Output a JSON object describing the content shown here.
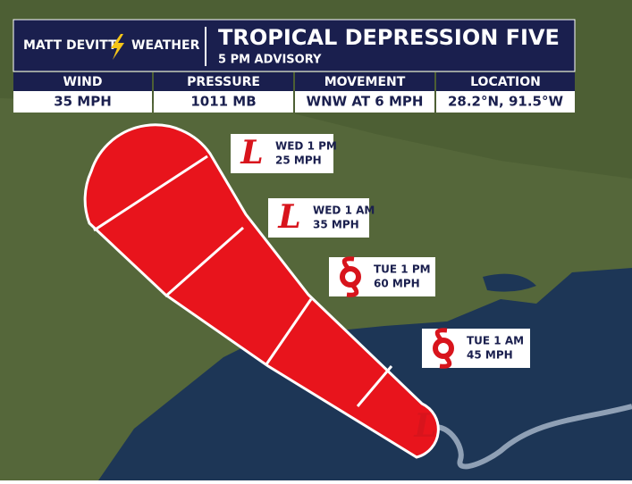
{
  "header": {
    "brand_left": "MATT DEVITT",
    "brand_right": "WEATHER",
    "title": "TROPICAL DEPRESSION FIVE",
    "subtitle": "5 PM ADVISORY"
  },
  "stats": [
    {
      "label": "WIND",
      "value": "35 MPH"
    },
    {
      "label": "PRESSURE",
      "value": "1011 MB"
    },
    {
      "label": "MOVEMENT",
      "value": "WNW AT 6 MPH"
    },
    {
      "label": "LOCATION",
      "value": "28.2°N, 91.5°W"
    }
  ],
  "current": {
    "symbol": "L"
  },
  "forecast": [
    {
      "symbol": "L",
      "time": "WED 1 PM",
      "intensity": "25 MPH"
    },
    {
      "symbol": "L",
      "time": "WED 1 AM",
      "intensity": "35 MPH"
    },
    {
      "time": "TUE 1 PM",
      "intensity": "60 MPH"
    },
    {
      "time": "TUE 1 AM",
      "intensity": "45 MPH"
    }
  ]
}
